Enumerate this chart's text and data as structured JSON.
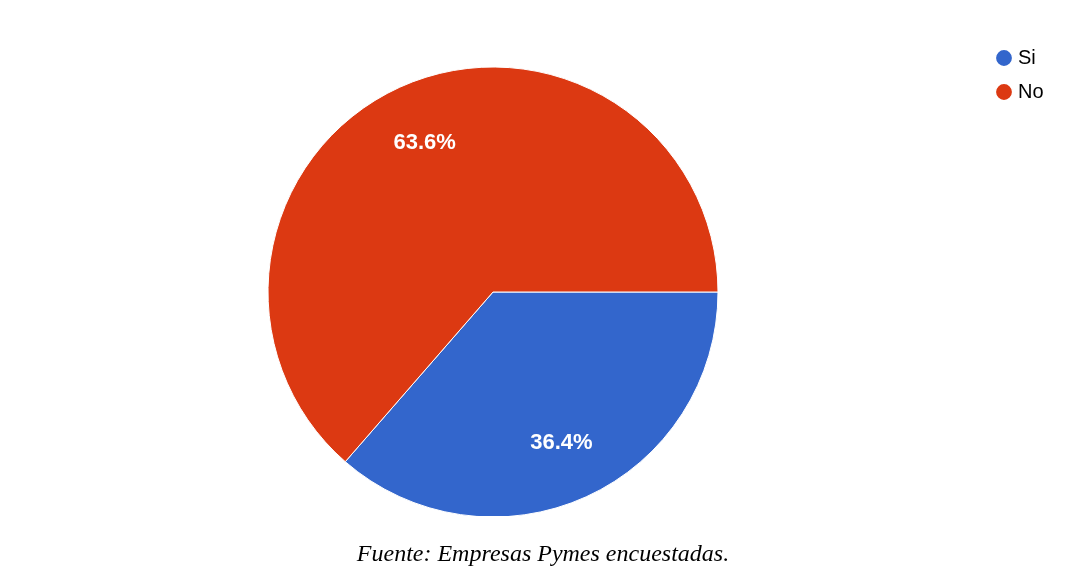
{
  "chart_data": {
    "type": "pie",
    "categories": [
      "Si",
      "No"
    ],
    "values": [
      36.4,
      63.6
    ],
    "colors": [
      "#3366cc",
      "#dc3912"
    ],
    "value_labels": [
      "36.4%",
      "63.6%"
    ],
    "legend": "top right",
    "annotations": [
      "Fuente: Empresas Pymes encuestadas."
    ]
  }
}
